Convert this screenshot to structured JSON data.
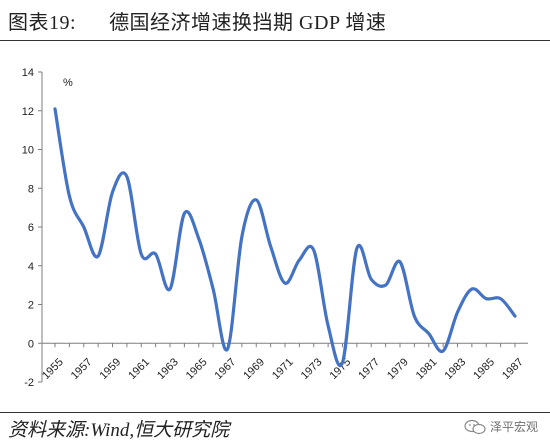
{
  "header": {
    "figure_label": "图表19:",
    "title": "德国经济增速换挡期 GDP 增速"
  },
  "footer": {
    "source": "资料来源:Wind,恒大研究院",
    "watermark": "泽平宏观"
  },
  "chart_data": {
    "type": "line",
    "unit_label": "%",
    "ylim": [
      -2,
      14
    ],
    "yticks": [
      -2,
      0,
      2,
      4,
      6,
      8,
      10,
      12,
      14
    ],
    "xlim": [
      1955,
      1988
    ],
    "xticks": [
      "1955",
      "1957",
      "1959",
      "1961",
      "1963",
      "1965",
      "1967",
      "1969",
      "1971",
      "1973",
      "1975",
      "1977",
      "1979",
      "1981",
      "1983",
      "1985",
      "1987"
    ],
    "grid": false,
    "legend": "none",
    "line_color": "#4472C4",
    "series": [
      {
        "x": [
          1955,
          1956,
          1957,
          1958,
          1959,
          1960,
          1961,
          1962,
          1963,
          1964,
          1965,
          1966,
          1967,
          1968,
          1969,
          1970,
          1971,
          1972,
          1973,
          1974,
          1975,
          1976,
          1977,
          1978,
          1979,
          1980,
          1981,
          1982,
          1983,
          1984,
          1985,
          1986,
          1987
        ],
        "values": [
          12.1,
          7.6,
          6.0,
          4.5,
          7.8,
          8.6,
          4.6,
          4.6,
          2.8,
          6.7,
          5.4,
          2.8,
          -0.3,
          5.5,
          7.4,
          5.0,
          3.1,
          4.3,
          4.8,
          0.9,
          -1.0,
          4.9,
          3.3,
          3.0,
          4.2,
          1.4,
          0.5,
          -0.4,
          1.6,
          2.8,
          2.3,
          2.3,
          1.4
        ]
      }
    ]
  }
}
